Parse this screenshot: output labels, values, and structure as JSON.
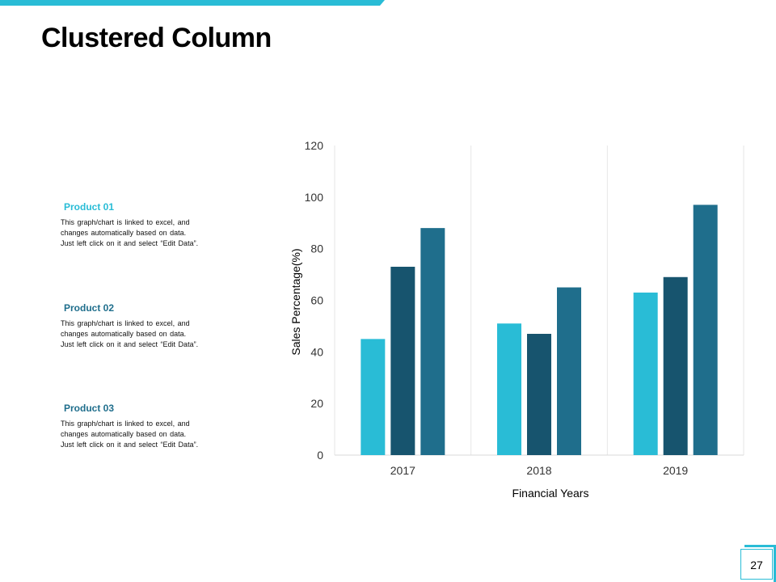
{
  "slide": {
    "title": "Clustered Column",
    "page_number": "27"
  },
  "products": [
    {
      "title": "Product 01",
      "description": "This graph/chart is linked to excel, and\nchanges automatically based on data.\nJust left click on it and select “Edit Data”."
    },
    {
      "title": "Product 02",
      "description": "This graph/chart is linked to excel, and\nchanges automatically based on data.\nJust left click on it and select “Edit Data”."
    },
    {
      "title": "Product 03",
      "description": "This graph/chart is linked to excel, and\nchanges automatically based on data.\nJust left click on it and select “Edit Data”."
    }
  ],
  "colors": {
    "accent": "#29bcd6",
    "series": [
      "#29bcd6",
      "#17546e",
      "#1f6e8c"
    ]
  },
  "chart_data": {
    "type": "bar",
    "title": "",
    "xlabel": "Financial Years",
    "ylabel": "Sales Percentage(%)",
    "categories": [
      "2017",
      "2018",
      "2019"
    ],
    "series": [
      {
        "name": "Product 01",
        "values": [
          45,
          51,
          63
        ]
      },
      {
        "name": "Product 02",
        "values": [
          73,
          47,
          69
        ]
      },
      {
        "name": "Product 03",
        "values": [
          88,
          65,
          97
        ]
      }
    ],
    "ylim": [
      0,
      120
    ],
    "yticks": [
      0,
      20,
      40,
      60,
      80,
      100,
      120
    ],
    "grid": "vertical category separators"
  }
}
